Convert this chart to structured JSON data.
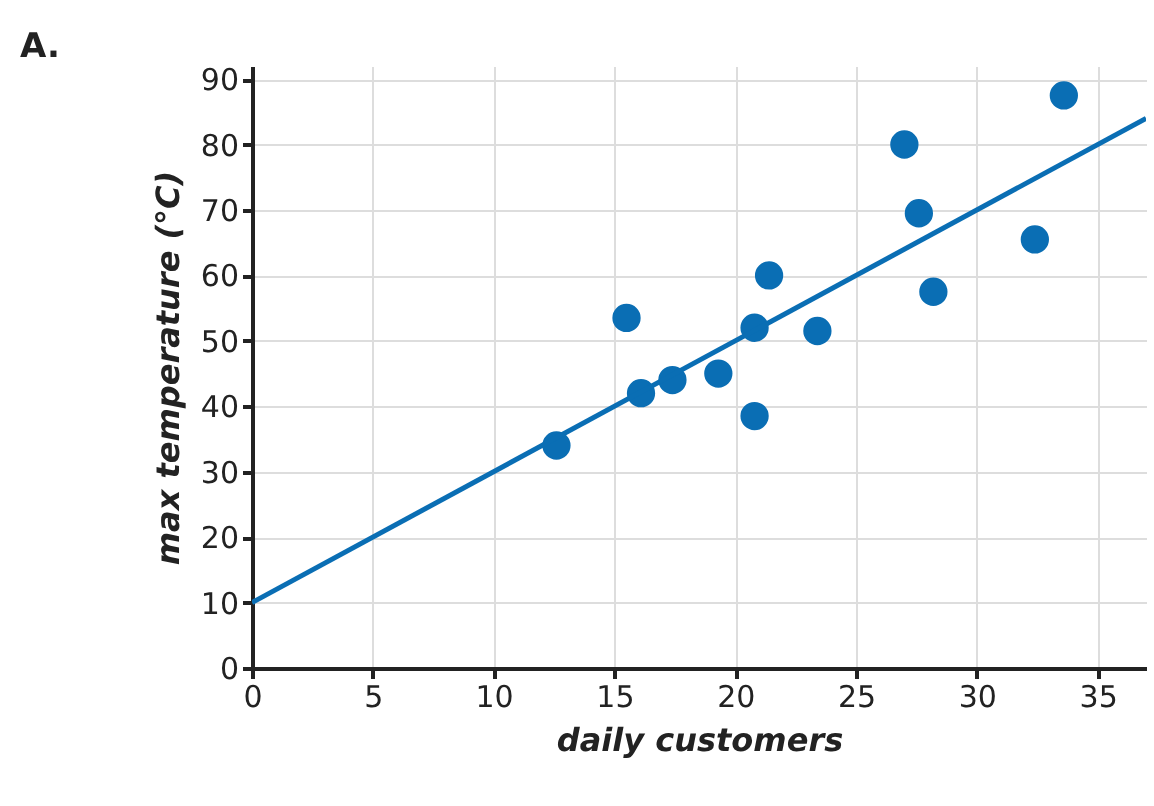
{
  "chart_data": {
    "type": "scatter",
    "title": "A.",
    "xlabel": "daily customers",
    "ylabel": "max temperature (°C)",
    "xlim": [
      0,
      37
    ],
    "ylim": [
      0,
      92
    ],
    "xticks": [
      0,
      5,
      10,
      15,
      20,
      25,
      30,
      35
    ],
    "yticks": [
      0,
      10,
      20,
      30,
      40,
      50,
      60,
      70,
      80,
      90
    ],
    "grid": true,
    "series": [
      {
        "marker": "circle",
        "color": "#0a6eb4",
        "x": [
          12.6,
          15.5,
          16.1,
          17.4,
          19.3,
          20.8,
          20.8,
          21.4,
          23.4,
          27,
          27.6,
          28.2,
          32.4,
          33.6
        ],
        "values": [
          34,
          53.5,
          42,
          44,
          45,
          38.5,
          52,
          60,
          51.5,
          80,
          69.5,
          57.5,
          65.5,
          87.5
        ]
      },
      {
        "type": "line",
        "color": "#0a6eb4",
        "x": [
          0,
          37
        ],
        "values": [
          10,
          84
        ]
      }
    ]
  }
}
